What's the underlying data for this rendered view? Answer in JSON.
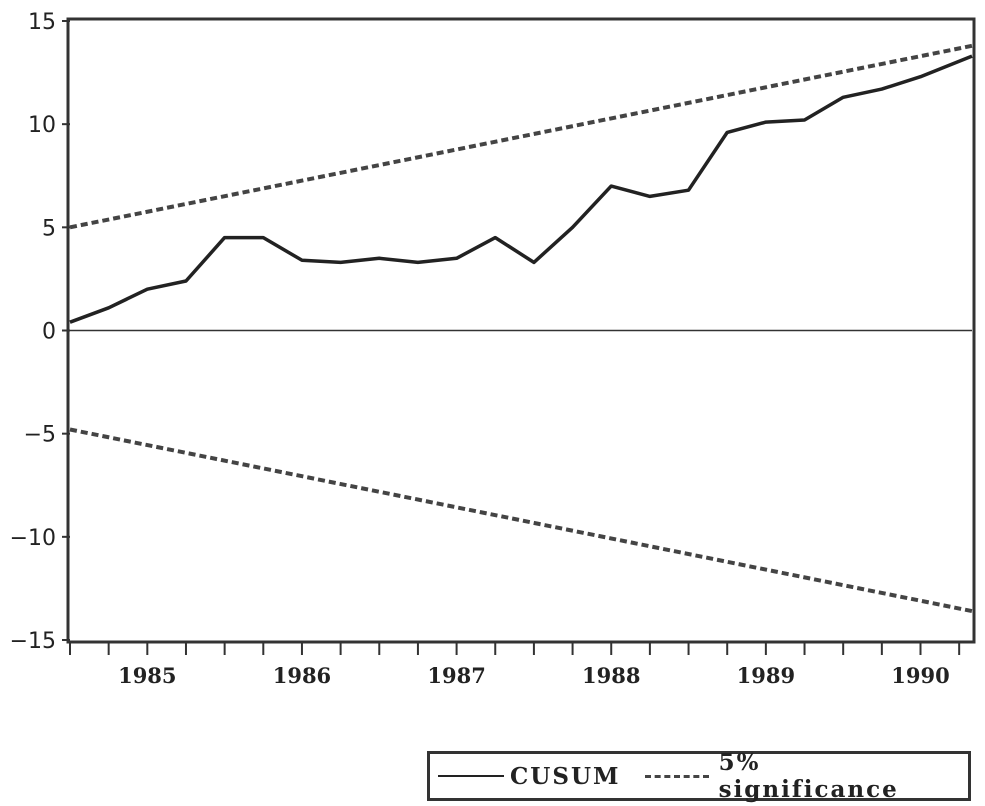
{
  "chart_data": {
    "type": "line",
    "title": "",
    "xlabel": "",
    "ylabel": "",
    "ylim": [
      -15,
      15
    ],
    "yticks": [
      15,
      10,
      5,
      0,
      -5,
      -10,
      -15
    ],
    "ytick_labels": [
      "15",
      "10",
      "5",
      "0",
      "−5",
      "−10",
      "−15"
    ],
    "xlim": [
      1984.5,
      1990.333
    ],
    "xticks": [
      1985,
      1986,
      1987,
      1988,
      1989,
      1990
    ],
    "xtick_labels": [
      "1985",
      "1986",
      "1987",
      "1988",
      "1989",
      "1990"
    ],
    "grid": false,
    "legend_position": "bottom-right",
    "series": [
      {
        "name": "CUSUM",
        "style": "solid",
        "color": "#222222",
        "x": [
          1984.5,
          1984.75,
          1985.0,
          1985.25,
          1985.5,
          1985.75,
          1986.0,
          1986.25,
          1986.5,
          1986.75,
          1987.0,
          1987.25,
          1987.5,
          1987.75,
          1988.0,
          1988.25,
          1988.5,
          1988.75,
          1989.0,
          1989.25,
          1989.5,
          1989.75,
          1990.0,
          1990.333
        ],
        "values": [
          0.4,
          1.1,
          2.0,
          2.4,
          4.5,
          4.5,
          3.4,
          3.3,
          3.5,
          3.3,
          3.5,
          4.5,
          3.3,
          5.0,
          7.0,
          6.5,
          6.8,
          9.6,
          10.1,
          10.2,
          11.3,
          11.7,
          12.3,
          13.3
        ]
      },
      {
        "name": "5% significance",
        "style": "dashed",
        "color": "#444444",
        "x": [
          1984.5,
          1990.333
        ],
        "values": [
          5.0,
          13.8
        ]
      },
      {
        "name": "5% significance",
        "style": "dashed",
        "color": "#444444",
        "x": [
          1984.5,
          1990.333
        ],
        "values": [
          -4.8,
          -13.6
        ]
      }
    ],
    "reference_line": 0
  },
  "legend": {
    "cusum_label": "CUSUM",
    "significance_label": "5%  significance"
  }
}
